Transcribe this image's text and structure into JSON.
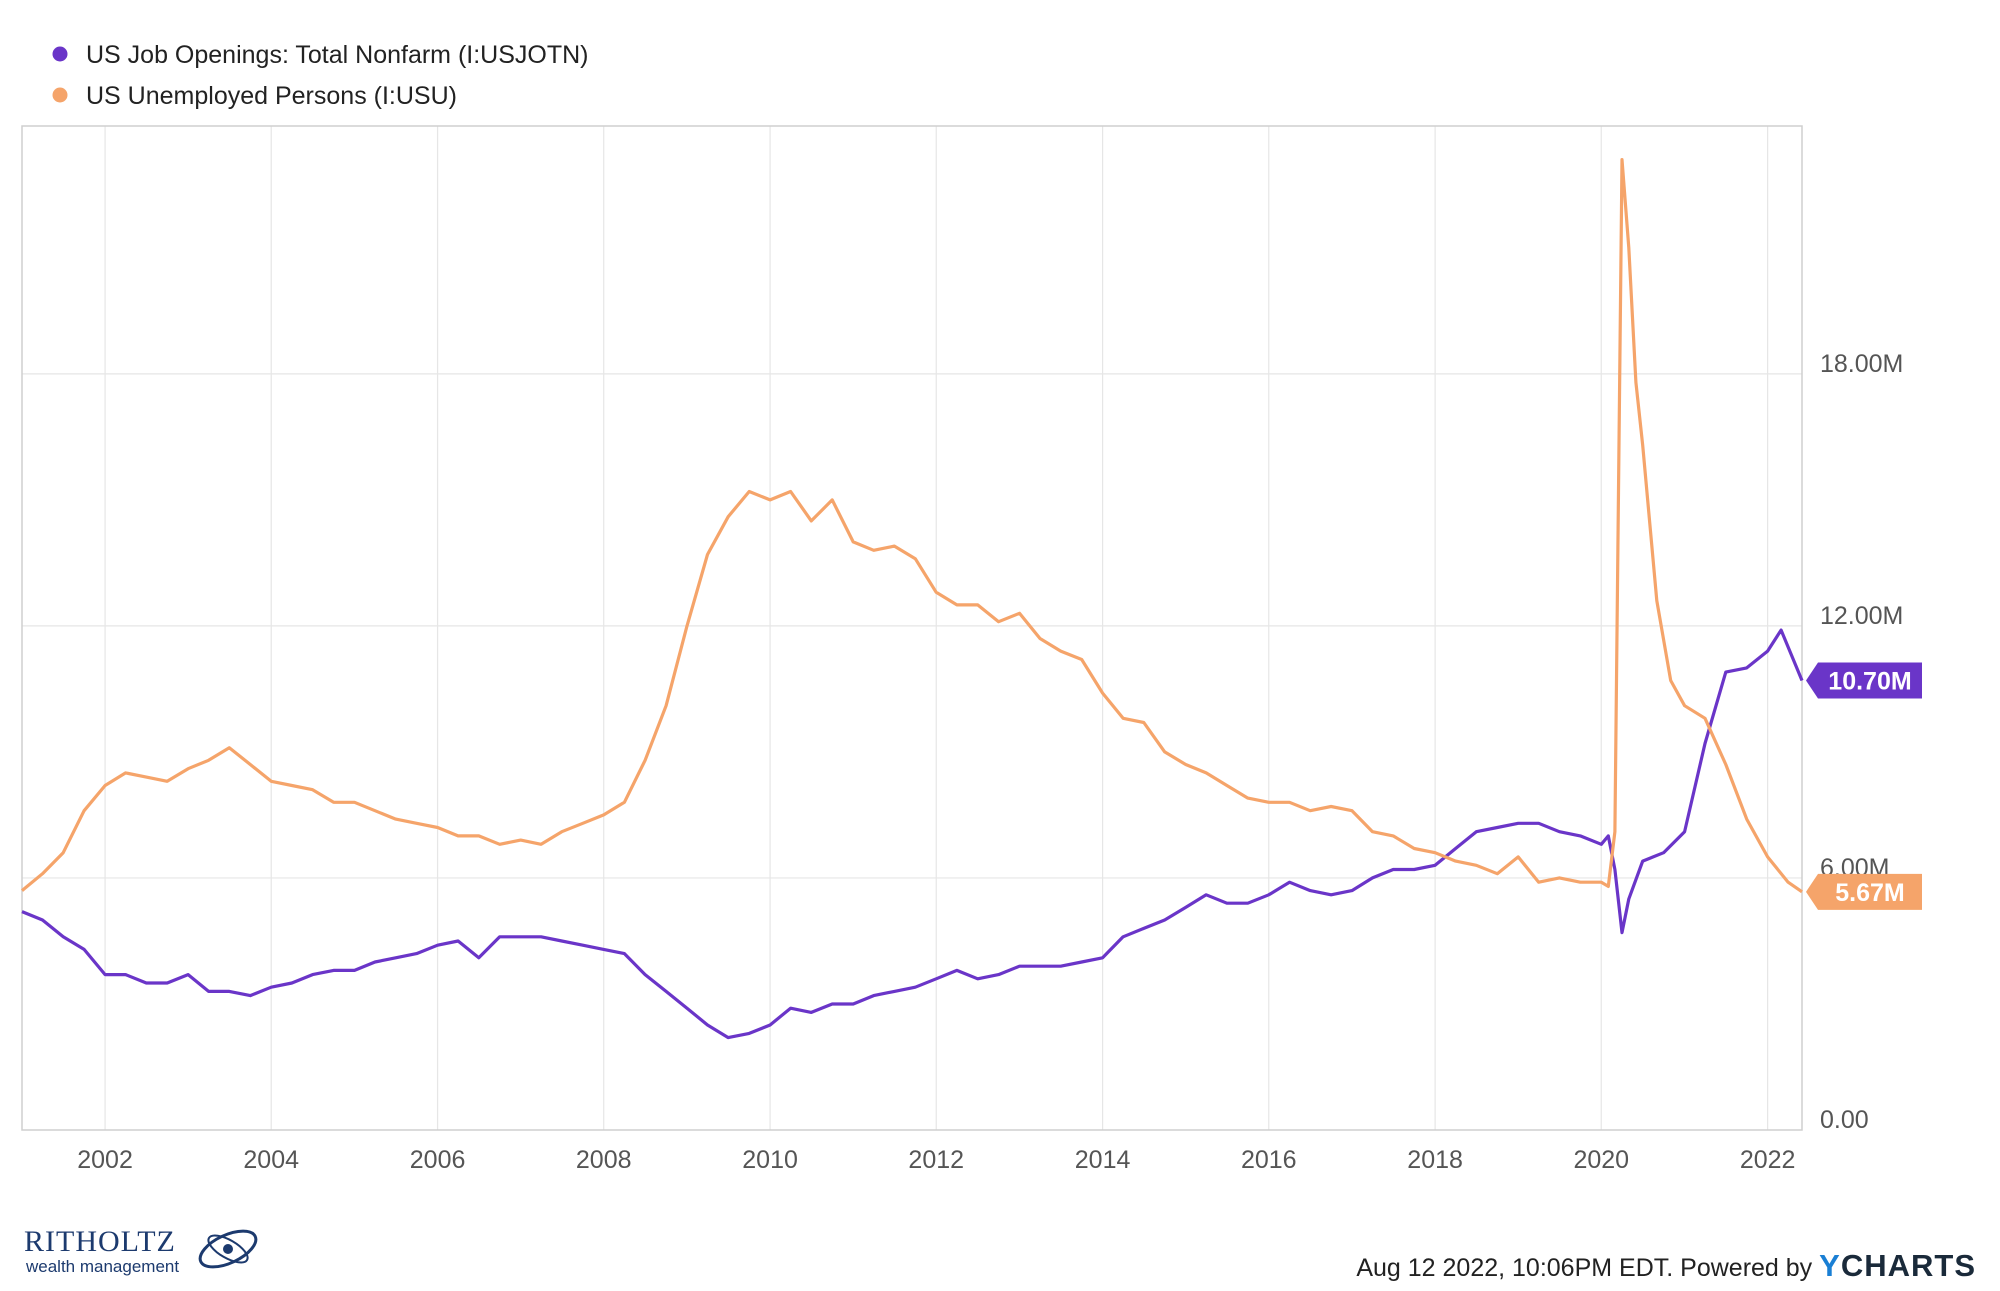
{
  "chart_data": {
    "type": "line",
    "x_type": "date",
    "x_range": [
      "2001-01",
      "2022-06"
    ],
    "x_ticks": [
      "2002",
      "2004",
      "2006",
      "2008",
      "2010",
      "2012",
      "2014",
      "2016",
      "2018",
      "2020",
      "2022"
    ],
    "y_ticks": [
      "0.00",
      "6.00M",
      "12.00M",
      "18.00M"
    ],
    "y_tick_values": [
      0,
      6,
      12,
      18
    ],
    "y_unit": "M",
    "ylim": [
      0,
      23.9
    ],
    "grid": true,
    "legend": "top-left",
    "series": [
      {
        "name": "US Job Openings: Total Nonfarm (I:USJOTN)",
        "color": "#6a35c8",
        "last_label": "10.70M",
        "points": [
          [
            "2001-01",
            5.2
          ],
          [
            "2001-04",
            5.0
          ],
          [
            "2001-07",
            4.6
          ],
          [
            "2001-10",
            4.3
          ],
          [
            "2002-01",
            3.7
          ],
          [
            "2002-04",
            3.7
          ],
          [
            "2002-07",
            3.5
          ],
          [
            "2002-10",
            3.5
          ],
          [
            "2003-01",
            3.7
          ],
          [
            "2003-04",
            3.3
          ],
          [
            "2003-07",
            3.3
          ],
          [
            "2003-10",
            3.2
          ],
          [
            "2004-01",
            3.4
          ],
          [
            "2004-04",
            3.5
          ],
          [
            "2004-07",
            3.7
          ],
          [
            "2004-10",
            3.8
          ],
          [
            "2005-01",
            3.8
          ],
          [
            "2005-04",
            4.0
          ],
          [
            "2005-07",
            4.1
          ],
          [
            "2005-10",
            4.2
          ],
          [
            "2006-01",
            4.4
          ],
          [
            "2006-04",
            4.5
          ],
          [
            "2006-07",
            4.1
          ],
          [
            "2006-10",
            4.6
          ],
          [
            "2007-01",
            4.6
          ],
          [
            "2007-04",
            4.6
          ],
          [
            "2007-07",
            4.5
          ],
          [
            "2007-10",
            4.4
          ],
          [
            "2008-01",
            4.3
          ],
          [
            "2008-04",
            4.2
          ],
          [
            "2008-07",
            3.7
          ],
          [
            "2008-10",
            3.3
          ],
          [
            "2009-01",
            2.9
          ],
          [
            "2009-04",
            2.5
          ],
          [
            "2009-07",
            2.2
          ],
          [
            "2009-10",
            2.3
          ],
          [
            "2010-01",
            2.5
          ],
          [
            "2010-04",
            2.9
          ],
          [
            "2010-07",
            2.8
          ],
          [
            "2010-10",
            3.0
          ],
          [
            "2011-01",
            3.0
          ],
          [
            "2011-04",
            3.2
          ],
          [
            "2011-07",
            3.3
          ],
          [
            "2011-10",
            3.4
          ],
          [
            "2012-01",
            3.6
          ],
          [
            "2012-04",
            3.8
          ],
          [
            "2012-07",
            3.6
          ],
          [
            "2012-10",
            3.7
          ],
          [
            "2013-01",
            3.9
          ],
          [
            "2013-04",
            3.9
          ],
          [
            "2013-07",
            3.9
          ],
          [
            "2013-10",
            4.0
          ],
          [
            "2014-01",
            4.1
          ],
          [
            "2014-04",
            4.6
          ],
          [
            "2014-07",
            4.8
          ],
          [
            "2014-10",
            5.0
          ],
          [
            "2015-01",
            5.3
          ],
          [
            "2015-04",
            5.6
          ],
          [
            "2015-07",
            5.4
          ],
          [
            "2015-10",
            5.4
          ],
          [
            "2016-01",
            5.6
          ],
          [
            "2016-04",
            5.9
          ],
          [
            "2016-07",
            5.7
          ],
          [
            "2016-10",
            5.6
          ],
          [
            "2017-01",
            5.7
          ],
          [
            "2017-04",
            6.0
          ],
          [
            "2017-07",
            6.2
          ],
          [
            "2017-10",
            6.2
          ],
          [
            "2018-01",
            6.3
          ],
          [
            "2018-04",
            6.7
          ],
          [
            "2018-07",
            7.1
          ],
          [
            "2018-10",
            7.2
          ],
          [
            "2019-01",
            7.3
          ],
          [
            "2019-04",
            7.3
          ],
          [
            "2019-07",
            7.1
          ],
          [
            "2019-10",
            7.0
          ],
          [
            "2020-01",
            6.8
          ],
          [
            "2020-02",
            7.0
          ],
          [
            "2020-03",
            6.2
          ],
          [
            "2020-04",
            4.7
          ],
          [
            "2020-05",
            5.5
          ],
          [
            "2020-07",
            6.4
          ],
          [
            "2020-10",
            6.6
          ],
          [
            "2021-01",
            7.1
          ],
          [
            "2021-04",
            9.2
          ],
          [
            "2021-07",
            10.9
          ],
          [
            "2021-10",
            11.0
          ],
          [
            "2022-01",
            11.4
          ],
          [
            "2022-03",
            11.9
          ],
          [
            "2022-06",
            10.7
          ]
        ]
      },
      {
        "name": "US Unemployed Persons (I:USU)",
        "color": "#f5a46a",
        "last_label": "5.67M",
        "points": [
          [
            "2001-01",
            5.7
          ],
          [
            "2001-04",
            6.1
          ],
          [
            "2001-07",
            6.6
          ],
          [
            "2001-10",
            7.6
          ],
          [
            "2002-01",
            8.2
          ],
          [
            "2002-04",
            8.5
          ],
          [
            "2002-07",
            8.4
          ],
          [
            "2002-10",
            8.3
          ],
          [
            "2003-01",
            8.6
          ],
          [
            "2003-04",
            8.8
          ],
          [
            "2003-07",
            9.1
          ],
          [
            "2003-10",
            8.7
          ],
          [
            "2004-01",
            8.3
          ],
          [
            "2004-04",
            8.2
          ],
          [
            "2004-07",
            8.1
          ],
          [
            "2004-10",
            7.8
          ],
          [
            "2005-01",
            7.8
          ],
          [
            "2005-04",
            7.6
          ],
          [
            "2005-07",
            7.4
          ],
          [
            "2005-10",
            7.3
          ],
          [
            "2006-01",
            7.2
          ],
          [
            "2006-04",
            7.0
          ],
          [
            "2006-07",
            7.0
          ],
          [
            "2006-10",
            6.8
          ],
          [
            "2007-01",
            6.9
          ],
          [
            "2007-04",
            6.8
          ],
          [
            "2007-07",
            7.1
          ],
          [
            "2007-10",
            7.3
          ],
          [
            "2008-01",
            7.5
          ],
          [
            "2008-04",
            7.8
          ],
          [
            "2008-07",
            8.8
          ],
          [
            "2008-10",
            10.1
          ],
          [
            "2009-01",
            12.0
          ],
          [
            "2009-04",
            13.7
          ],
          [
            "2009-07",
            14.6
          ],
          [
            "2009-10",
            15.2
          ],
          [
            "2010-01",
            15.0
          ],
          [
            "2010-04",
            15.2
          ],
          [
            "2010-07",
            14.5
          ],
          [
            "2010-10",
            15.0
          ],
          [
            "2011-01",
            14.0
          ],
          [
            "2011-04",
            13.8
          ],
          [
            "2011-07",
            13.9
          ],
          [
            "2011-10",
            13.6
          ],
          [
            "2012-01",
            12.8
          ],
          [
            "2012-04",
            12.5
          ],
          [
            "2012-07",
            12.5
          ],
          [
            "2012-10",
            12.1
          ],
          [
            "2013-01",
            12.3
          ],
          [
            "2013-04",
            11.7
          ],
          [
            "2013-07",
            11.4
          ],
          [
            "2013-10",
            11.2
          ],
          [
            "2014-01",
            10.4
          ],
          [
            "2014-04",
            9.8
          ],
          [
            "2014-07",
            9.7
          ],
          [
            "2014-10",
            9.0
          ],
          [
            "2015-01",
            8.7
          ],
          [
            "2015-04",
            8.5
          ],
          [
            "2015-07",
            8.2
          ],
          [
            "2015-10",
            7.9
          ],
          [
            "2016-01",
            7.8
          ],
          [
            "2016-04",
            7.8
          ],
          [
            "2016-07",
            7.6
          ],
          [
            "2016-10",
            7.7
          ],
          [
            "2017-01",
            7.6
          ],
          [
            "2017-04",
            7.1
          ],
          [
            "2017-07",
            7.0
          ],
          [
            "2017-10",
            6.7
          ],
          [
            "2018-01",
            6.6
          ],
          [
            "2018-04",
            6.4
          ],
          [
            "2018-07",
            6.3
          ],
          [
            "2018-10",
            6.1
          ],
          [
            "2019-01",
            6.5
          ],
          [
            "2019-04",
            5.9
          ],
          [
            "2019-07",
            6.0
          ],
          [
            "2019-10",
            5.9
          ],
          [
            "2020-01",
            5.9
          ],
          [
            "2020-02",
            5.8
          ],
          [
            "2020-03",
            7.1
          ],
          [
            "2020-04",
            23.1
          ],
          [
            "2020-05",
            21.0
          ],
          [
            "2020-06",
            17.8
          ],
          [
            "2020-07",
            16.3
          ],
          [
            "2020-09",
            12.6
          ],
          [
            "2020-11",
            10.7
          ],
          [
            "2021-01",
            10.1
          ],
          [
            "2021-04",
            9.8
          ],
          [
            "2021-07",
            8.7
          ],
          [
            "2021-10",
            7.4
          ],
          [
            "2022-01",
            6.5
          ],
          [
            "2022-04",
            5.9
          ],
          [
            "2022-06",
            5.67
          ]
        ]
      }
    ]
  },
  "footer": {
    "timestamp": "Aug 12 2022, 10:06PM EDT.",
    "powered_by": "Powered by",
    "brand_y": "Y",
    "brand_rest": "CHARTS"
  },
  "logo": {
    "name": "RITHOLTZ",
    "subtitle": "wealth management"
  }
}
